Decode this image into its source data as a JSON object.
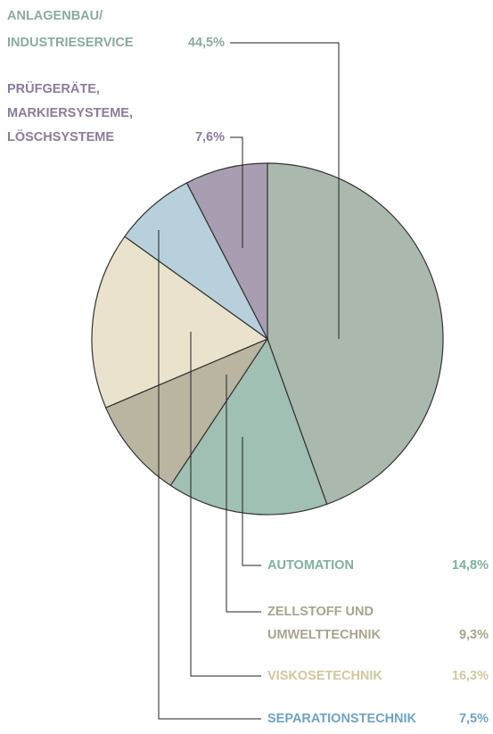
{
  "chart_data": {
    "type": "pie",
    "categories": [
      [
        "ANLAGENBAU/",
        "INDUSTRIESERVICE"
      ],
      [
        "AUTOMATION"
      ],
      [
        "ZELLSTOFF UND",
        "UMWELTTECHNIK"
      ],
      [
        "VISKOSETECHNIK"
      ],
      [
        "SEPARATIONSTECHNIK"
      ],
      [
        "PRÜFGERÄTE,",
        "MARKIERSYSTEME,",
        "LÖSCHSYSTEME"
      ]
    ],
    "values": [
      44.5,
      14.8,
      9.3,
      16.3,
      7.5,
      7.6
    ],
    "value_labels": [
      "44,5%",
      "14,8%",
      "9,3%",
      "16,3%",
      "7,5%",
      "7,6%"
    ],
    "colors": [
      "#aab8ad",
      "#9fc0b2",
      "#bab5a1",
      "#e9e3cd",
      "#b7d0dc",
      "#a99db1"
    ],
    "label_colors": [
      "#8aab9c",
      "#7fb0a0",
      "#a8a48c",
      "#d2c79e",
      "#6fa3c2",
      "#8c7c99"
    ]
  }
}
